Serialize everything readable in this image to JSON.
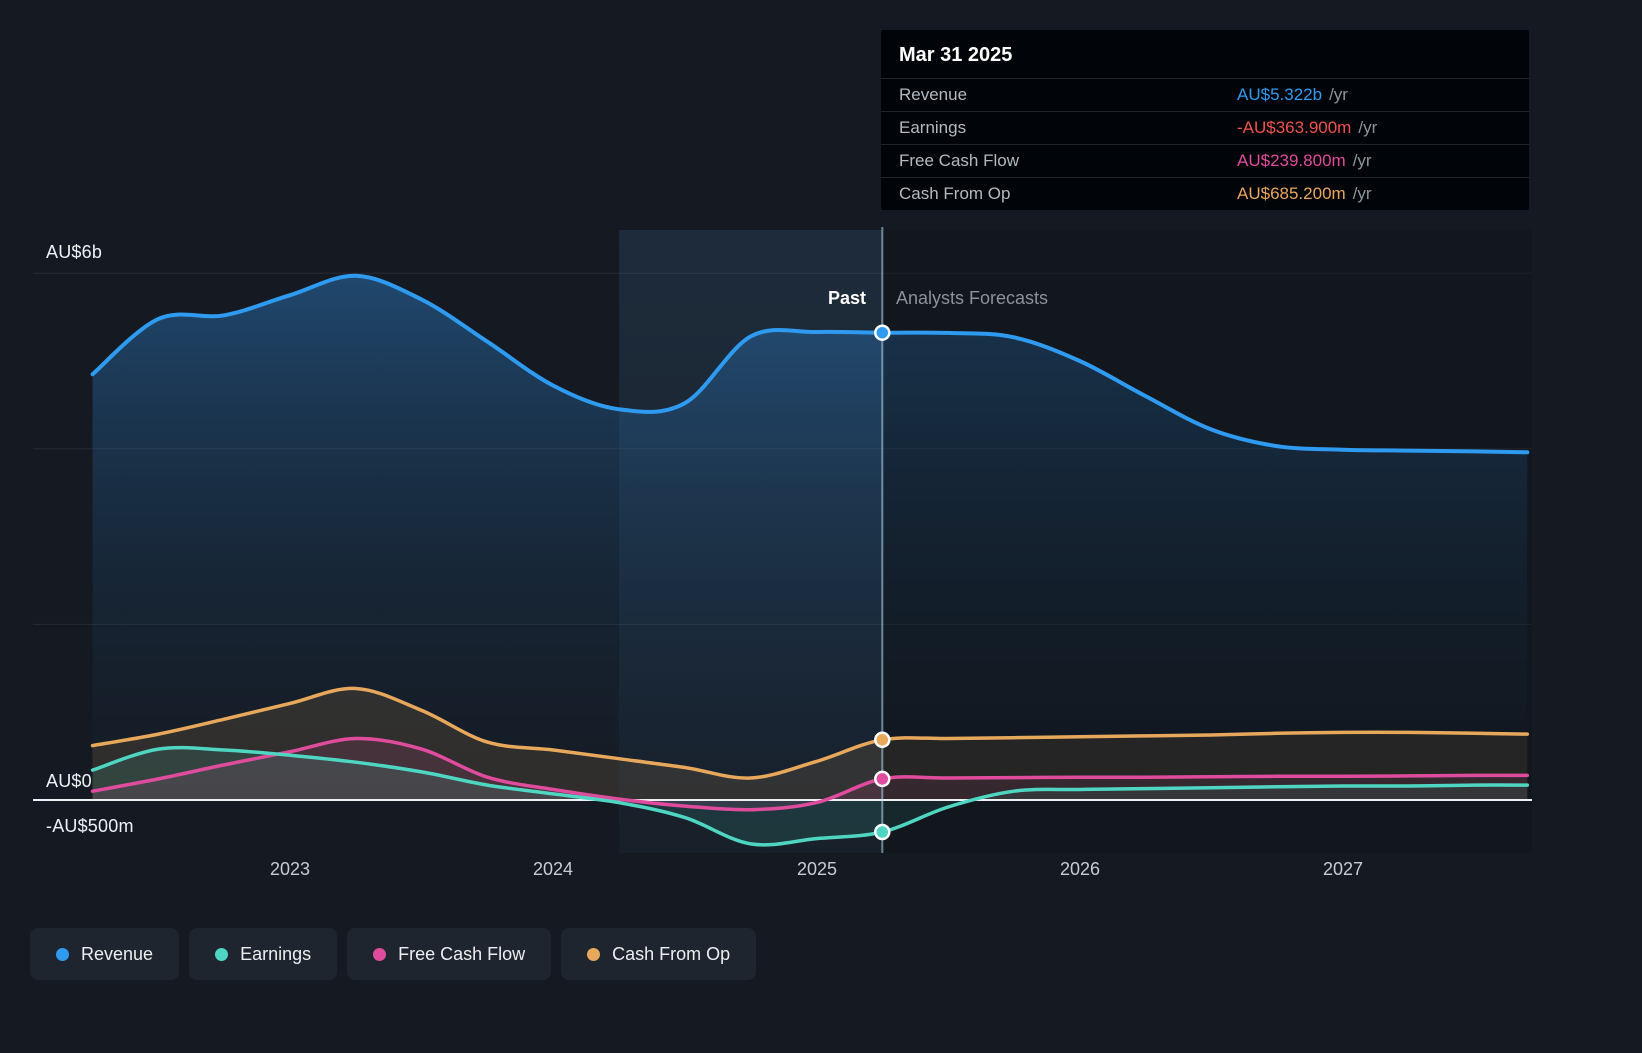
{
  "tooltip": {
    "title": "Mar 31 2025",
    "rows": [
      {
        "label": "Revenue",
        "value": "AU$5.322b",
        "unit": "/yr",
        "color": "#2e9bf0"
      },
      {
        "label": "Earnings",
        "value": "-AU$363.900m",
        "unit": "/yr",
        "color": "#f0524c"
      },
      {
        "label": "Free Cash Flow",
        "value": "AU$239.800m",
        "unit": "/yr",
        "color": "#e04c9d"
      },
      {
        "label": "Cash From Op",
        "value": "AU$685.200m",
        "unit": "/yr",
        "color": "#e8a85c"
      }
    ]
  },
  "labels": {
    "past": "Past",
    "forecast": "Analysts Forecasts"
  },
  "axis": {
    "y": [
      "AU$6b",
      "AU$0",
      "-AU$500m"
    ],
    "x": [
      "2023",
      "2024",
      "2025",
      "2026",
      "2027"
    ]
  },
  "legend": [
    {
      "label": "Revenue",
      "color": "#2e9bf0"
    },
    {
      "label": "Earnings",
      "color": "#4fd6c2"
    },
    {
      "label": "Free Cash Flow",
      "color": "#e04c9d"
    },
    {
      "label": "Cash From Op",
      "color": "#e8a85c"
    }
  ],
  "chart_data": {
    "type": "area",
    "title": "Past results and analysts forecasts: Revenue, Earnings, Free Cash Flow, Cash From Op",
    "units": "AU$ billions",
    "x_unit": "year",
    "x": [
      2022.25,
      2022.5,
      2022.75,
      2023.0,
      2023.25,
      2023.5,
      2023.75,
      2024.0,
      2024.25,
      2024.5,
      2024.75,
      2025.0,
      2025.25,
      2025.5,
      2025.75,
      2026.0,
      2026.25,
      2026.5,
      2026.75,
      2027.0,
      2027.25,
      2027.5,
      2027.7
    ],
    "series": [
      {
        "name": "Revenue",
        "color": "#2e9bf0",
        "values": [
          4.85,
          5.48,
          5.52,
          5.75,
          5.97,
          5.7,
          5.22,
          4.72,
          4.45,
          4.52,
          5.28,
          5.33,
          5.322,
          5.32,
          5.27,
          5.0,
          4.6,
          4.22,
          4.03,
          3.99,
          3.98,
          3.97,
          3.96
        ]
      },
      {
        "name": "Earnings",
        "color": "#4fd6c2",
        "values": [
          0.34,
          0.58,
          0.57,
          0.51,
          0.43,
          0.32,
          0.17,
          0.07,
          -0.03,
          -0.2,
          -0.5,
          -0.44,
          -0.3639,
          -0.08,
          0.1,
          0.12,
          0.13,
          0.14,
          0.15,
          0.16,
          0.16,
          0.17,
          0.17
        ]
      },
      {
        "name": "Free Cash Flow",
        "color": "#e04c9d",
        "values": [
          0.1,
          0.24,
          0.4,
          0.55,
          0.7,
          0.58,
          0.26,
          0.12,
          0.01,
          -0.07,
          -0.11,
          -0.03,
          0.2398,
          0.25,
          0.255,
          0.26,
          0.26,
          0.265,
          0.27,
          0.27,
          0.275,
          0.28,
          0.28
        ]
      },
      {
        "name": "Cash From Op",
        "color": "#e8a85c",
        "values": [
          0.62,
          0.75,
          0.92,
          1.1,
          1.27,
          1.02,
          0.66,
          0.57,
          0.47,
          0.37,
          0.25,
          0.44,
          0.6852,
          0.7,
          0.71,
          0.72,
          0.73,
          0.74,
          0.76,
          0.77,
          0.77,
          0.76,
          0.75
        ]
      }
    ],
    "y_gridlines_b": [
      6,
      4,
      2
    ],
    "y_tick_labels": [
      "AU$6b",
      "AU$0",
      "-AU$500m"
    ],
    "x_tick_labels": [
      "2023",
      "2024",
      "2025",
      "2026",
      "2027"
    ],
    "ylim": [
      -0.6,
      6.5
    ],
    "grid": true,
    "legend_position": "bottom-left",
    "divider_x": 2025.25,
    "highlight_band": [
      2024.25,
      2025.25
    ],
    "marker_x": 2025.25,
    "marker_values": {
      "revenue_b": 5.322,
      "earnings_b": -0.3639,
      "free_cash_flow_b": 0.2398,
      "cash_from_op_b": 0.6852
    }
  }
}
